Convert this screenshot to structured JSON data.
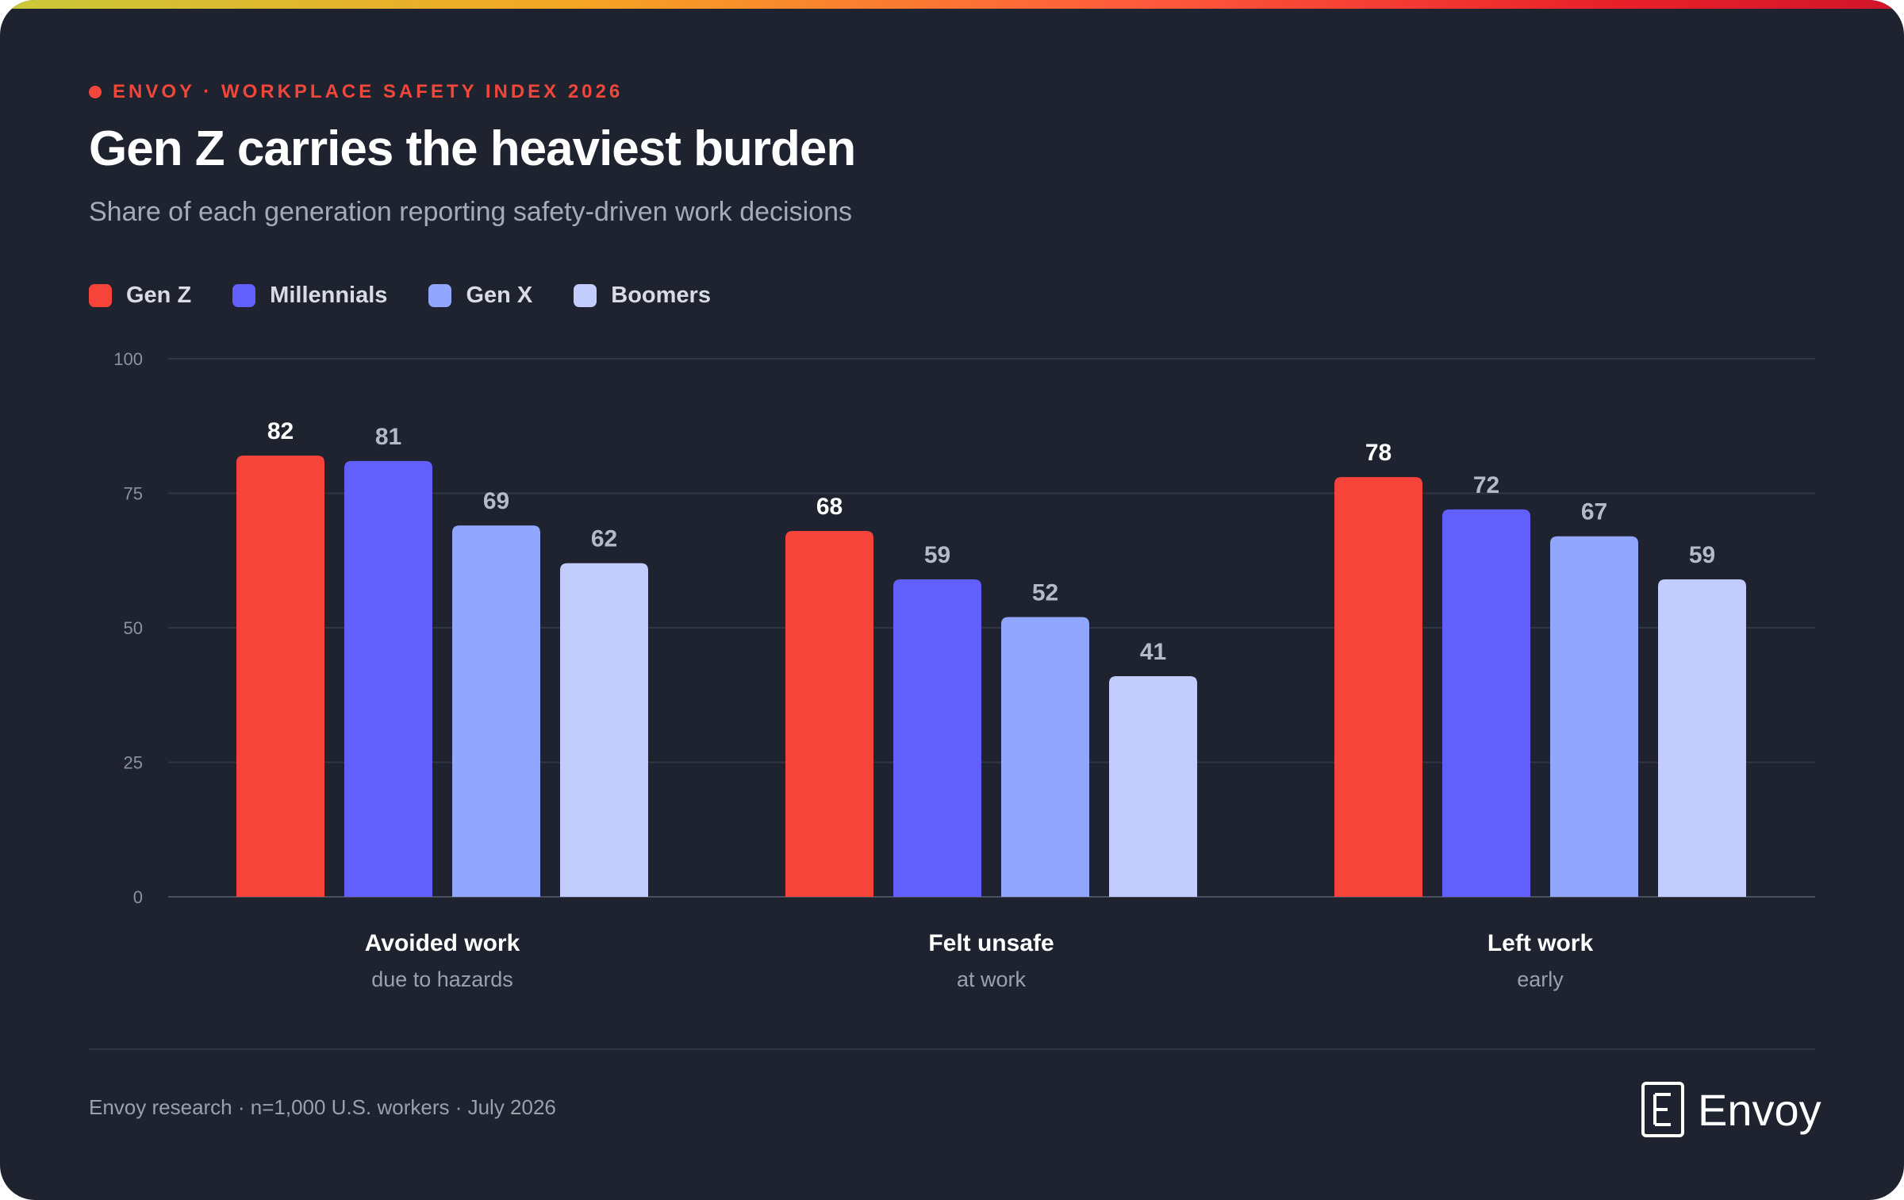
{
  "header": {
    "kicker": "ENVOY · WORKPLACE SAFETY INDEX 2026",
    "title": "Gen Z carries the heaviest burden",
    "subtitle": "Share of each generation reporting safety-driven work decisions"
  },
  "legend": [
    {
      "label": "Gen Z",
      "color": "#f6443a"
    },
    {
      "label": "Millennials",
      "color": "#625ffd"
    },
    {
      "label": "Gen X",
      "color": "#91a6fd"
    },
    {
      "label": "Boomers",
      "color": "#c2cdfd"
    }
  ],
  "chart_data": {
    "type": "bar",
    "title": "Gen Z carries the heaviest burden",
    "categories": [
      {
        "label": "Avoided work",
        "sublabel": "due to hazards"
      },
      {
        "label": "Felt unsafe",
        "sublabel": "at work"
      },
      {
        "label": "Left work",
        "sublabel": "early"
      }
    ],
    "series": [
      {
        "name": "Gen Z",
        "values": [
          82,
          68,
          78
        ],
        "color": "#f6443a"
      },
      {
        "name": "Millennials",
        "values": [
          81,
          59,
          72
        ],
        "color": "#625ffd"
      },
      {
        "name": "Gen X",
        "values": [
          69,
          52,
          67
        ],
        "color": "#91a6fd"
      },
      {
        "name": "Boomers",
        "values": [
          62,
          41,
          59
        ],
        "color": "#c2cdfd"
      }
    ],
    "ylim": [
      0,
      100
    ],
    "yticks": [
      0,
      25,
      50,
      75,
      100
    ],
    "grid": true,
    "legend_position": "top-left"
  },
  "footer": {
    "source": "Envoy research · n=1,000 U.S. workers · July 2026",
    "brand": "Envoy"
  }
}
